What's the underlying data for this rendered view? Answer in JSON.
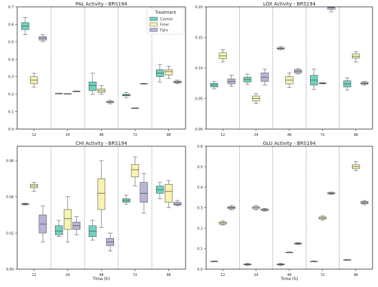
{
  "legend": {
    "title": "Treatment",
    "entries": [
      {
        "name": "Control",
        "color": "#6fd3bf"
      },
      {
        "name": "Fmer",
        "color": "#f7f3b0"
      },
      {
        "name": "Fgra",
        "color": "#b9b4d8"
      }
    ]
  },
  "chart_data": [
    {
      "type": "box",
      "title": "PAL Activity - BRS194",
      "xlabel": "",
      "ylabel": "",
      "categories": [
        "12",
        "24",
        "48",
        "72",
        "96"
      ],
      "ylim": [
        0,
        0.7
      ],
      "yticks": [
        "0.0",
        "0.1",
        "0.2",
        "0.3",
        "0.4",
        "0.5",
        "0.6",
        "0.7"
      ],
      "ytick_values": [
        0,
        0.1,
        0.2,
        0.3,
        0.4,
        0.5,
        0.6,
        0.7
      ],
      "grid": "dotted vertical separators between time groups",
      "legend_position": "top-right",
      "series": [
        {
          "name": "Control",
          "boxes": [
            [
              0.54,
              0.57,
              0.59,
              0.61,
              0.64
            ],
            [
              0.203,
              0.203,
              0.204,
              0.204,
              0.205
            ],
            [
              0.2,
              0.22,
              0.25,
              0.27,
              0.32
            ],
            [
              0.18,
              0.19,
              0.195,
              0.2,
              0.21
            ],
            [
              0.27,
              0.3,
              0.32,
              0.34,
              0.37
            ]
          ]
        },
        {
          "name": "Fmer",
          "boxes": [
            [
              0.24,
              0.26,
              0.28,
              0.3,
              0.32
            ],
            [
              0.202,
              0.202,
              0.203,
              0.203,
              0.204
            ],
            [
              0.2,
              0.21,
              0.22,
              0.23,
              0.25
            ],
            [
              0.118,
              0.119,
              0.12,
              0.121,
              0.122
            ],
            [
              0.29,
              0.31,
              0.33,
              0.34,
              0.36
            ]
          ]
        },
        {
          "name": "Fgra",
          "boxes": [
            [
              0.5,
              0.51,
              0.52,
              0.53,
              0.54
            ],
            [
              0.214,
              0.215,
              0.216,
              0.217,
              0.218
            ],
            [
              0.145,
              0.152,
              0.155,
              0.158,
              0.165
            ],
            [
              0.258,
              0.259,
              0.26,
              0.261,
              0.262
            ],
            [
              0.26,
              0.265,
              0.27,
              0.275,
              0.28
            ]
          ]
        }
      ]
    },
    {
      "type": "box",
      "title": "LOX Activity - BRS194",
      "xlabel": "",
      "ylabel": "",
      "categories": [
        "12",
        "24",
        "48",
        "72",
        "96"
      ],
      "ylim": [
        0,
        0.2
      ],
      "yticks": [
        "0.00",
        "0.05",
        "0.10",
        "0.15",
        "0.20"
      ],
      "ytick_values": [
        0,
        0.05,
        0.1,
        0.15,
        0.2
      ],
      "grid": "dotted vertical separators between time groups",
      "series": [
        {
          "name": "Control",
          "boxes": [
            [
              0.066,
              0.069,
              0.072,
              0.075,
              0.078
            ],
            [
              0.073,
              0.077,
              0.081,
              0.085,
              0.09
            ],
            [
              0.13,
              0.131,
              0.132,
              0.133,
              0.135
            ],
            [
              0.065,
              0.072,
              0.08,
              0.088,
              0.098
            ],
            [
              0.064,
              0.069,
              0.074,
              0.079,
              0.084
            ]
          ]
        },
        {
          "name": "Fmer",
          "boxes": [
            [
              0.11,
              0.115,
              0.12,
              0.125,
              0.13
            ],
            [
              0.042,
              0.046,
              0.05,
              0.054,
              0.058
            ],
            [
              0.068,
              0.074,
              0.08,
              0.086,
              0.092
            ],
            [
              0.074,
              0.0745,
              0.075,
              0.0755,
              0.076
            ],
            [
              0.11,
              0.116,
              0.119,
              0.123,
              0.127
            ]
          ]
        },
        {
          "name": "Fgra",
          "boxes": [
            [
              0.07,
              0.074,
              0.078,
              0.082,
              0.088
            ],
            [
              0.072,
              0.078,
              0.085,
              0.092,
              0.098
            ],
            [
              0.09,
              0.092,
              0.095,
              0.097,
              0.099
            ],
            [
              0.192,
              0.196,
              0.199,
              0.2,
              0.2
            ],
            [
              0.072,
              0.0735,
              0.075,
              0.0765,
              0.078
            ]
          ]
        }
      ]
    },
    {
      "type": "box",
      "title": "CHI Activity - BRS194",
      "xlabel": "Time (h)",
      "ylabel": "",
      "categories": [
        "12",
        "24",
        "48",
        "72",
        "96"
      ],
      "ylim": [
        0,
        0.068
      ],
      "yticks": [
        "0.00",
        "0.02",
        "0.04",
        "0.06"
      ],
      "ytick_values": [
        0,
        0.02,
        0.04,
        0.06
      ],
      "grid": "dotted vertical separators between time groups",
      "series": [
        {
          "name": "Control",
          "boxes": [
            [
              0.0355,
              0.0358,
              0.036,
              0.0362,
              0.0365
            ],
            [
              0.018,
              0.019,
              0.021,
              0.024,
              0.027
            ],
            [
              0.016,
              0.018,
              0.021,
              0.024,
              0.027
            ],
            [
              0.036,
              0.037,
              0.038,
              0.039,
              0.041
            ],
            [
              0.039,
              0.042,
              0.044,
              0.046,
              0.048
            ]
          ]
        },
        {
          "name": "Fmer",
          "boxes": [
            [
              0.043,
              0.045,
              0.046,
              0.047,
              0.048
            ],
            [
              0.015,
              0.022,
              0.028,
              0.033,
              0.04
            ],
            [
              0.023,
              0.033,
              0.042,
              0.05,
              0.06
            ],
            [
              0.046,
              0.051,
              0.055,
              0.058,
              0.062
            ],
            [
              0.034,
              0.037,
              0.043,
              0.047,
              0.049
            ]
          ]
        },
        {
          "name": "Fgra",
          "boxes": [
            [
              0.015,
              0.02,
              0.025,
              0.03,
              0.035
            ],
            [
              0.019,
              0.022,
              0.024,
              0.026,
              0.029
            ],
            [
              0.01,
              0.013,
              0.015,
              0.017,
              0.02
            ],
            [
              0.031,
              0.037,
              0.042,
              0.048,
              0.053
            ],
            [
              0.035,
              0.0355,
              0.036,
              0.037,
              0.038
            ]
          ]
        }
      ]
    },
    {
      "type": "box",
      "title": "GLU Activity - BRS194",
      "xlabel": "Time (h)",
      "ylabel": "",
      "categories": [
        "12",
        "24",
        "48",
        "72",
        "96"
      ],
      "ylim": [
        0,
        0.6
      ],
      "yticks": [
        "0.0",
        "0.1",
        "0.2",
        "0.3",
        "0.4",
        "0.5",
        "0.6"
      ],
      "ytick_values": [
        0,
        0.1,
        0.2,
        0.3,
        0.4,
        0.5,
        0.6
      ],
      "grid": "dotted vertical separators between time groups",
      "series": [
        {
          "name": "Control",
          "boxes": [
            [
              0.036,
              0.037,
              0.038,
              0.039,
              0.04
            ],
            [
              0.018,
              0.021,
              0.023,
              0.025,
              0.028
            ],
            [
              0.018,
              0.021,
              0.023,
              0.025,
              0.028
            ],
            [
              0.036,
              0.037,
              0.038,
              0.039,
              0.04
            ],
            [
              0.043,
              0.044,
              0.045,
              0.046,
              0.047
            ]
          ]
        },
        {
          "name": "Fmer",
          "boxes": [
            [
              0.215,
              0.22,
              0.225,
              0.23,
              0.235
            ],
            [
              0.29,
              0.295,
              0.3,
              0.305,
              0.31
            ],
            [
              0.08,
              0.081,
              0.082,
              0.083,
              0.084
            ],
            [
              0.24,
              0.245,
              0.25,
              0.255,
              0.26
            ],
            [
              0.48,
              0.49,
              0.5,
              0.51,
              0.525
            ]
          ]
        },
        {
          "name": "Fgra",
          "boxes": [
            [
              0.29,
              0.295,
              0.3,
              0.305,
              0.31
            ],
            [
              0.283,
              0.287,
              0.29,
              0.293,
              0.297
            ],
            [
              0.12,
              0.123,
              0.125,
              0.127,
              0.13
            ],
            [
              0.365,
              0.368,
              0.37,
              0.373,
              0.376
            ],
            [
              0.315,
              0.32,
              0.325,
              0.33,
              0.335
            ]
          ]
        }
      ]
    }
  ]
}
